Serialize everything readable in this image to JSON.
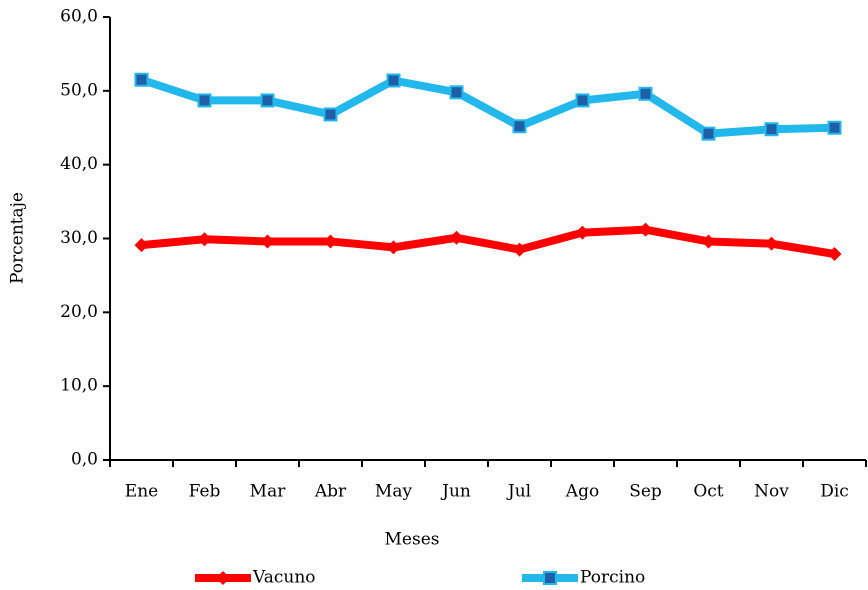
{
  "chart_data": {
    "type": "line",
    "x_label": "Meses",
    "y_label": "Porcentaje",
    "categories": [
      "Ene",
      "Feb",
      "Mar",
      "Abr",
      "May",
      "Jun",
      "Jul",
      "Ago",
      "Sep",
      "Oct",
      "Nov",
      "Dic"
    ],
    "series": [
      {
        "name": "Vacuno",
        "color": "#ff0000",
        "marker": "diamond",
        "marker_color": "#ff0000",
        "values": [
          29.1,
          29.9,
          29.6,
          29.6,
          28.8,
          30.1,
          28.5,
          30.8,
          31.2,
          29.6,
          29.3,
          27.9
        ]
      },
      {
        "name": "Porcino",
        "color": "#22b8ec",
        "marker": "square",
        "marker_color": "#1f5fa8",
        "values": [
          51.5,
          48.7,
          48.7,
          46.8,
          51.4,
          49.8,
          45.2,
          48.7,
          49.6,
          44.2,
          44.8,
          45.0
        ]
      }
    ],
    "ylim": [
      0,
      60
    ],
    "yticks": [
      {
        "value": 0,
        "label": "0,0"
      },
      {
        "value": 10,
        "label": "10,0"
      },
      {
        "value": 20,
        "label": "20,0"
      },
      {
        "value": 30,
        "label": "30,0"
      },
      {
        "value": 40,
        "label": "40,0"
      },
      {
        "value": 50,
        "label": "50,0"
      },
      {
        "value": 60,
        "label": "60,0"
      }
    ],
    "grid": false
  }
}
